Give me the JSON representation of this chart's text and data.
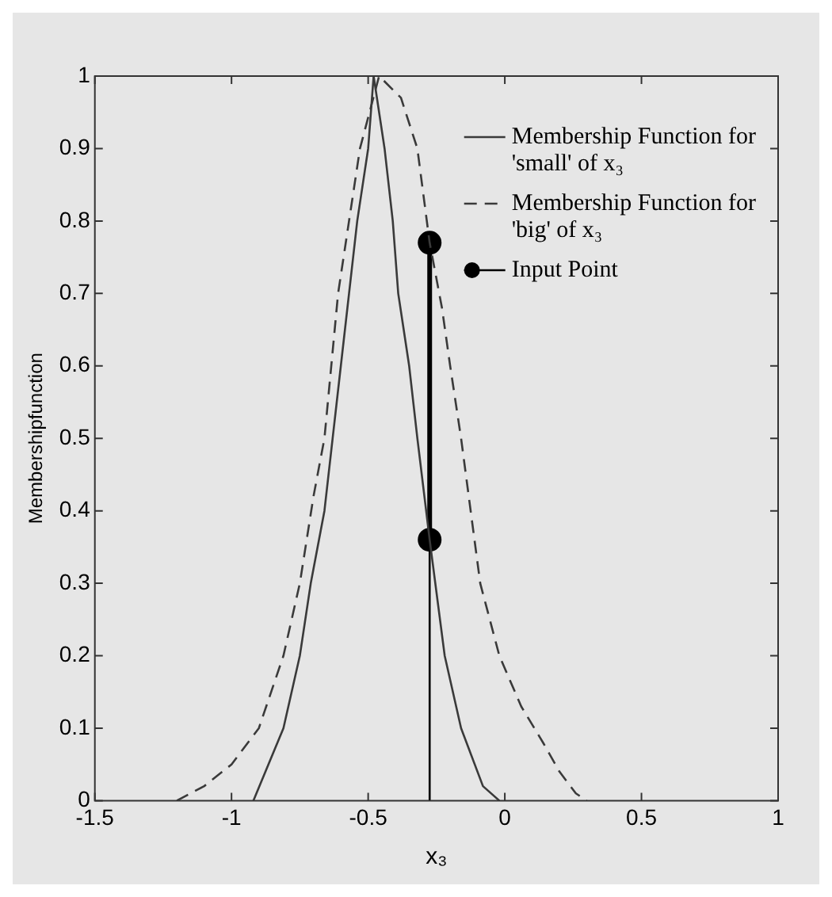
{
  "chart_data": {
    "type": "line",
    "xlabel": "x₃",
    "ylabel": "Membershipfunction",
    "xlim": [
      -1.5,
      1
    ],
    "ylim": [
      0,
      1
    ],
    "xticks": [
      -1.5,
      -1,
      -0.5,
      0,
      0.5,
      1
    ],
    "yticks": [
      0,
      0.1,
      0.2,
      0.3,
      0.4,
      0.5,
      0.6,
      0.7,
      0.8,
      0.9,
      1
    ],
    "grid": false,
    "legend": "top right",
    "marker": "none",
    "series": [
      {
        "name": "Membership Function for 'small' of x₃",
        "color": "#3a3a3a",
        "line_style": "solid",
        "x": [
          -0.92,
          -0.81,
          -0.75,
          -0.71,
          -0.66,
          -0.63,
          -0.6,
          -0.57,
          -0.54,
          -0.5,
          -0.48,
          -0.44,
          -0.41,
          -0.39,
          -0.35,
          -0.32,
          -0.275,
          -0.22,
          -0.16,
          -0.08,
          -0.02
        ],
        "values": [
          0,
          0.1,
          0.2,
          0.3,
          0.4,
          0.5,
          0.6,
          0.7,
          0.8,
          0.9,
          1,
          0.9,
          0.8,
          0.7,
          0.6,
          0.5,
          0.36,
          0.2,
          0.1,
          0.02,
          0
        ]
      },
      {
        "name": "Membership Function for 'big' of x₃",
        "color": "#3a3a3a",
        "line_style": "dashed",
        "x": [
          -1.2,
          -1.1,
          -1.0,
          -0.9,
          -0.81,
          -0.75,
          -0.7,
          -0.66,
          -0.61,
          -0.57,
          -0.53,
          -0.46,
          -0.38,
          -0.32,
          -0.275,
          -0.23,
          -0.2,
          -0.16,
          -0.09,
          -0.02,
          0.06,
          0.14,
          0.2,
          0.26,
          0.3
        ],
        "values": [
          0,
          0.02,
          0.05,
          0.1,
          0.2,
          0.3,
          0.42,
          0.5,
          0.7,
          0.8,
          0.9,
          1,
          0.97,
          0.9,
          0.77,
          0.68,
          0.6,
          0.5,
          0.3,
          0.2,
          0.13,
          0.08,
          0.04,
          0.01,
          0
        ]
      },
      {
        "name": "Input Point",
        "color": "#000000",
        "line_style": "solid",
        "marker": "circle",
        "x": [
          -0.275,
          -0.275
        ],
        "values": [
          0.36,
          0.77
        ]
      },
      {
        "color": "#000000",
        "line_style": "solid",
        "x": [
          -0.275,
          -0.275
        ],
        "values": [
          0,
          0.36
        ]
      }
    ]
  }
}
